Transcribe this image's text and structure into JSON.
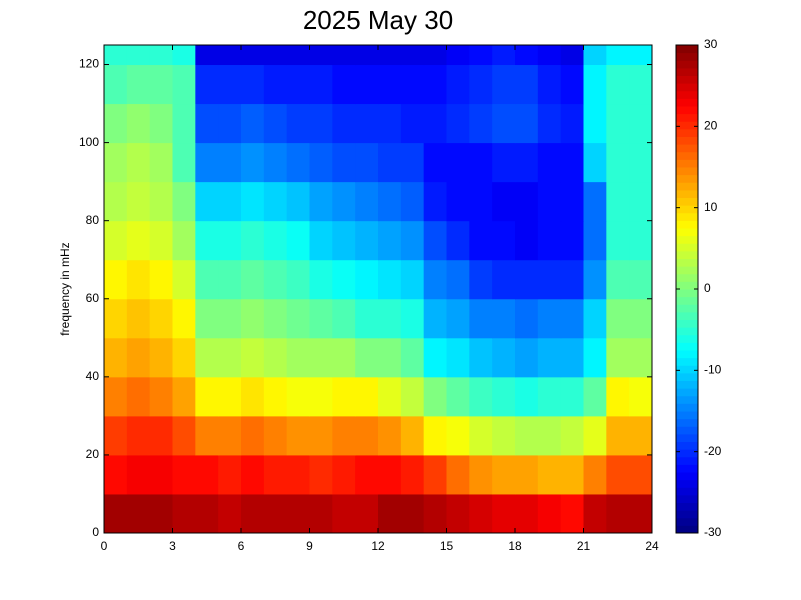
{
  "chart_data": {
    "type": "heatmap",
    "title": "2025 May 30",
    "y_label": "frequency in mHz",
    "x": [
      0,
      1,
      2,
      3,
      4,
      5,
      6,
      7,
      8,
      9,
      10,
      11,
      12,
      13,
      14,
      15,
      16,
      17,
      18,
      19,
      20,
      21,
      22,
      23,
      24
    ],
    "y": [
      0,
      10,
      20,
      30,
      40,
      50,
      60,
      70,
      80,
      90,
      100,
      110,
      120,
      125
    ],
    "xlim": [
      0,
      24
    ],
    "xticks": [
      0,
      3,
      6,
      9,
      12,
      15,
      18,
      21,
      24
    ],
    "ylim": [
      0,
      125
    ],
    "yticks": [
      0,
      20,
      40,
      60,
      80,
      100,
      120
    ],
    "clim": [
      -30,
      30
    ],
    "cticks": [
      -30,
      -20,
      -10,
      0,
      10,
      20,
      30
    ],
    "colormap": "jet",
    "values": [
      [
        28,
        28,
        28,
        27,
        27,
        26,
        27,
        27,
        27,
        27,
        26,
        26,
        28,
        28,
        27,
        26,
        25,
        24,
        24,
        23,
        22,
        26,
        27,
        27
      ],
      [
        22,
        23,
        23,
        22,
        22,
        21,
        22,
        21,
        21,
        20,
        21,
        22,
        22,
        21,
        19,
        16,
        14,
        13,
        13,
        12,
        12,
        15,
        18,
        18
      ],
      [
        19,
        20,
        20,
        18,
        15,
        15,
        16,
        15,
        14,
        14,
        15,
        15,
        14,
        12,
        8,
        7,
        5,
        4,
        3,
        3,
        4,
        6,
        12,
        12
      ],
      [
        15,
        16,
        15,
        13,
        8,
        8,
        9,
        8,
        7,
        7,
        8,
        8,
        6,
        4,
        0,
        -2,
        -4,
        -5,
        -6,
        -5,
        -5,
        -2,
        8,
        7
      ],
      [
        12,
        13,
        12,
        10,
        3,
        3,
        4,
        3,
        2,
        2,
        2,
        0,
        0,
        -2,
        -8,
        -9,
        -11,
        -12,
        -13,
        -12,
        -12,
        -8,
        2,
        2
      ],
      [
        10,
        11,
        10,
        8,
        0,
        0,
        1,
        0,
        -1,
        -2,
        -3,
        -5,
        -5,
        -6,
        -12,
        -13,
        -15,
        -15,
        -16,
        -15,
        -15,
        -10,
        0,
        0
      ],
      [
        8,
        9,
        8,
        5,
        -3,
        -3,
        -2,
        -3,
        -4,
        -6,
        -7,
        -8,
        -9,
        -10,
        -15,
        -16,
        -19,
        -20,
        -20,
        -20,
        -20,
        -14,
        -3,
        -3
      ],
      [
        5,
        6,
        5,
        2,
        -6,
        -6,
        -5,
        -6,
        -7,
        -10,
        -11,
        -12,
        -13,
        -14,
        -18,
        -20,
        -22,
        -22,
        -23,
        -22,
        -22,
        -16,
        -5,
        -5
      ],
      [
        3,
        4,
        3,
        0,
        -10,
        -10,
        -9,
        -10,
        -11,
        -13,
        -14,
        -15,
        -16,
        -17,
        -21,
        -22,
        -22,
        -23,
        -23,
        -22,
        -22,
        -16,
        -5,
        -5
      ],
      [
        2,
        3,
        2,
        -3,
        -15,
        -15,
        -14,
        -15,
        -16,
        -17,
        -18,
        -18,
        -19,
        -19,
        -22,
        -22,
        -22,
        -21,
        -21,
        -22,
        -22,
        -10,
        -5,
        -5
      ],
      [
        0,
        1,
        0,
        -3,
        -18,
        -18,
        -17,
        -18,
        -19,
        -19,
        -20,
        -20,
        -20,
        -21,
        -21,
        -20,
        -19,
        -18,
        -18,
        -20,
        -21,
        -8,
        -5,
        -5
      ],
      [
        -3,
        -2,
        -2,
        -3,
        -20,
        -20,
        -20,
        -21,
        -21,
        -21,
        -22,
        -22,
        -22,
        -22,
        -22,
        -21,
        -20,
        -19,
        -19,
        -21,
        -22,
        -8,
        -5,
        -5
      ],
      [
        -5,
        -5,
        -5,
        -6,
        -24,
        -24,
        -24,
        -24,
        -24,
        -24,
        -24,
        -24,
        -24,
        -24,
        -24,
        -23,
        -22,
        -21,
        -22,
        -23,
        -24,
        -10,
        -8,
        -8
      ]
    ]
  }
}
